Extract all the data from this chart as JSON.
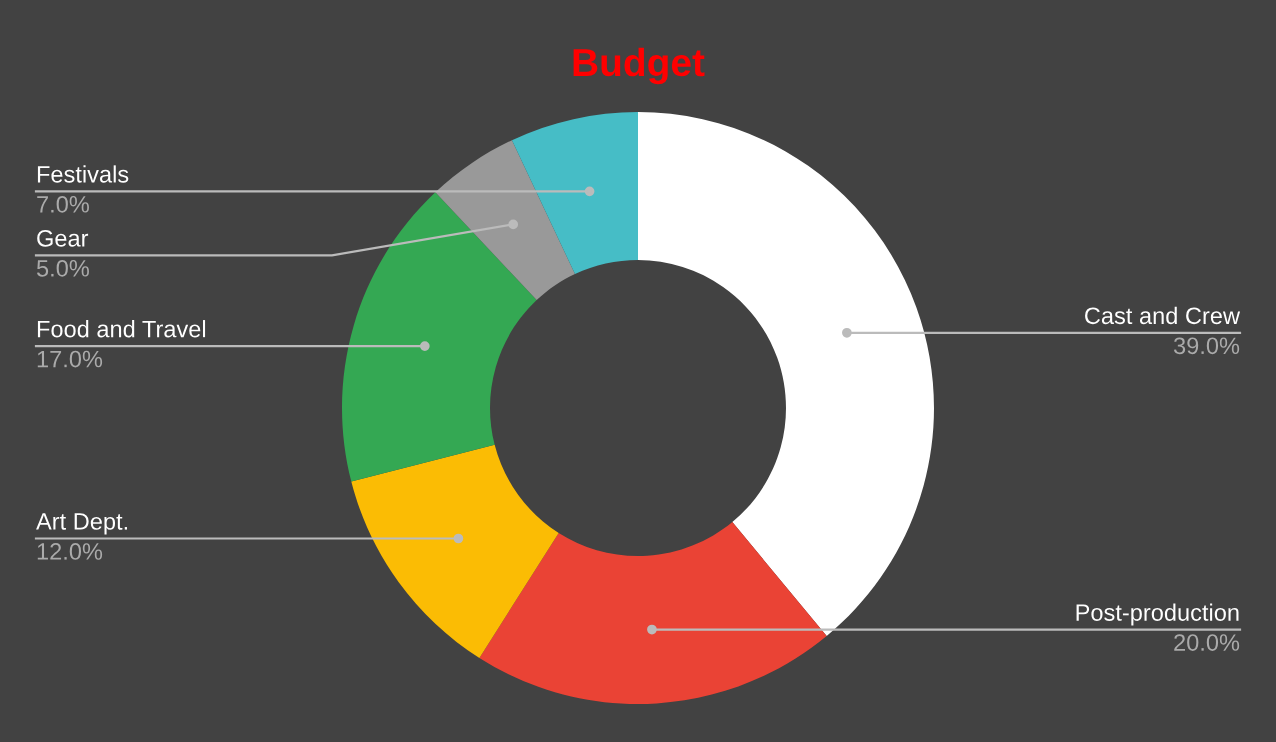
{
  "chart_data": {
    "type": "donut",
    "title": "Budget",
    "categories": [
      "Cast and Crew",
      "Post-production",
      "Art Dept.",
      "Food and Travel",
      "Gear",
      "Festivals"
    ],
    "values": [
      39,
      20,
      12,
      17,
      5,
      7
    ],
    "value_labels": [
      "39.0%",
      "20.0%",
      "12.0%",
      "17.0%",
      "5.0%",
      "7.0%"
    ],
    "colors": [
      "#ffffff",
      "#ea4335",
      "#fbbc04",
      "#34a853",
      "#999999",
      "#46bdc6"
    ],
    "legend": false
  }
}
